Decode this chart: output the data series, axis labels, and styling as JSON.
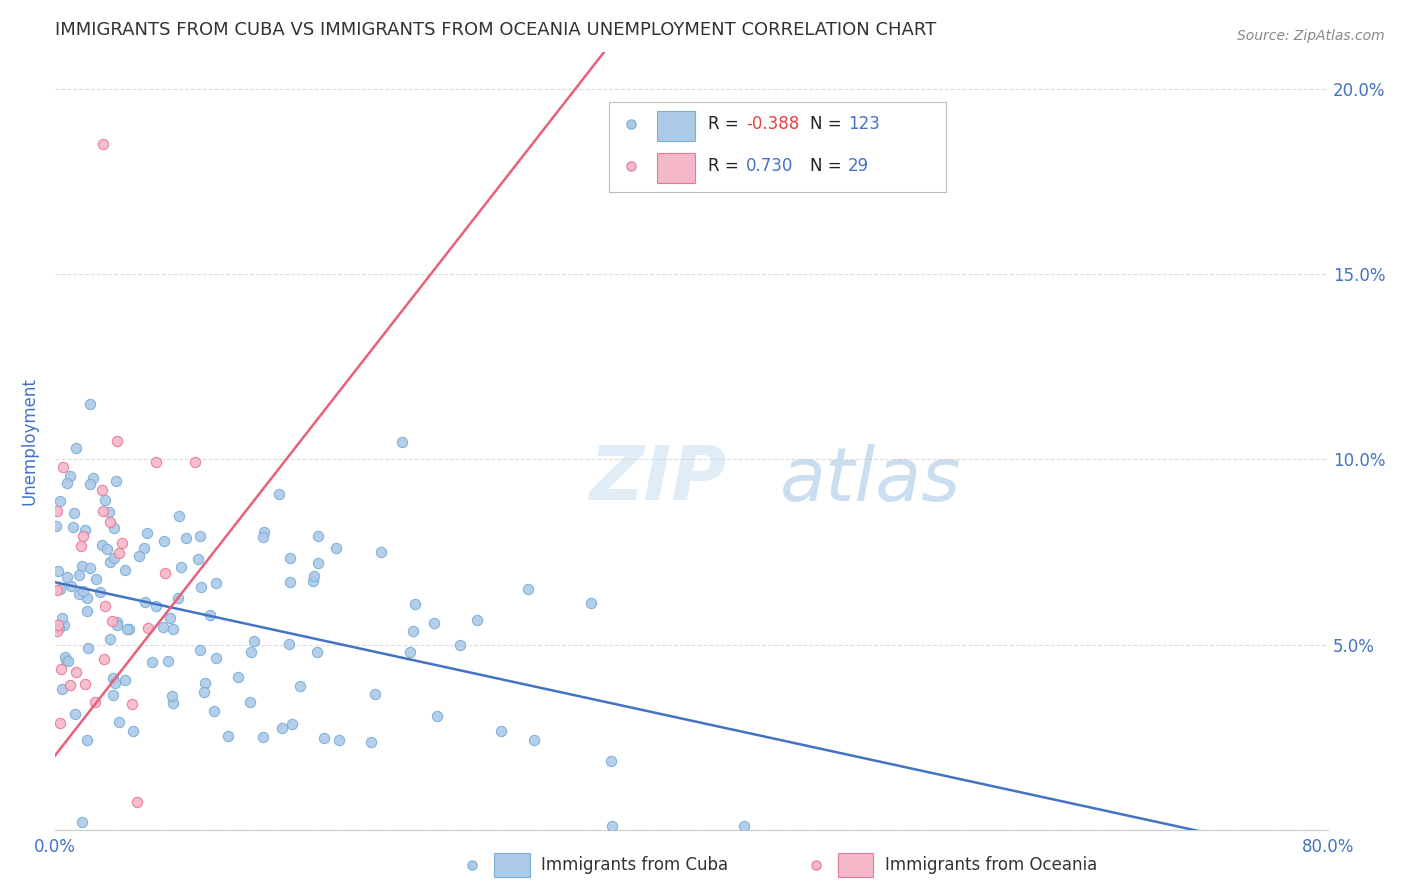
{
  "title": "IMMIGRANTS FROM CUBA VS IMMIGRANTS FROM OCEANIA UNEMPLOYMENT CORRELATION CHART",
  "source": "Source: ZipAtlas.com",
  "xlabel": "",
  "ylabel": "Unemployment",
  "watermark_zip": "ZIP",
  "watermark_atlas": "atlas",
  "xlim": [
    0.0,
    0.8
  ],
  "ylim": [
    0.0,
    0.21
  ],
  "yticks_right_labels": [
    "5.0%",
    "10.0%",
    "15.0%",
    "20.0%"
  ],
  "series1_color": "#adc9e8",
  "series1_edge": "#7aaed6",
  "series1_line_color": "#4472c4",
  "series1_label": "Immigrants from Cuba",
  "series1_R": -0.388,
  "series1_N": 123,
  "series2_color": "#f4b8c8",
  "series2_edge": "#e87898",
  "series2_line_color": "#e8607a",
  "series2_label": "Immigrants from Oceania",
  "series2_R": 0.73,
  "series2_N": 29,
  "legend_label_color": "#222222",
  "legend_value_color": "#4472c4",
  "background_color": "#ffffff",
  "grid_color": "#dddddd",
  "title_color": "#333333",
  "title_fontsize": 13,
  "axis_label_color": "#4472c4",
  "seed": 42
}
